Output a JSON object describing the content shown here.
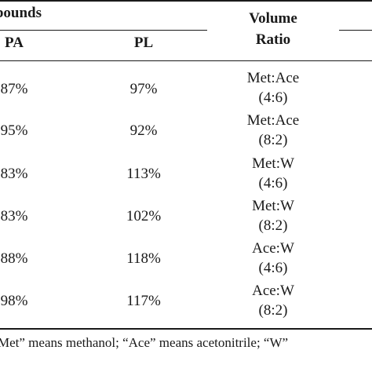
{
  "table": {
    "header": {
      "group_label": "mpounds",
      "col_pa": "PA",
      "col_pl": "PL",
      "col_ratio_line1": "Volume",
      "col_ratio_line2": "Ratio"
    },
    "rows": [
      {
        "pa": "87%",
        "pl": "97%",
        "ratio1": "Met:Ace",
        "ratio2": "(4:6)"
      },
      {
        "pa": "95%",
        "pl": "92%",
        "ratio1": "Met:Ace",
        "ratio2": "(8:2)"
      },
      {
        "pa": "83%",
        "pl": "113%",
        "ratio1": "Met:W",
        "ratio2": "(4:6)"
      },
      {
        "pa": "83%",
        "pl": "102%",
        "ratio1": "Met:W",
        "ratio2": "(8:2)"
      },
      {
        "pa": "88%",
        "pl": "118%",
        "ratio1": "Ace:W",
        "ratio2": "(4:6)"
      },
      {
        "pa": "98%",
        "pl": "117%",
        "ratio1": "Ace:W",
        "ratio2": "(8:2)"
      }
    ],
    "footnote": "Met” means methanol; “Ace” means acetonitrile; “W”"
  }
}
